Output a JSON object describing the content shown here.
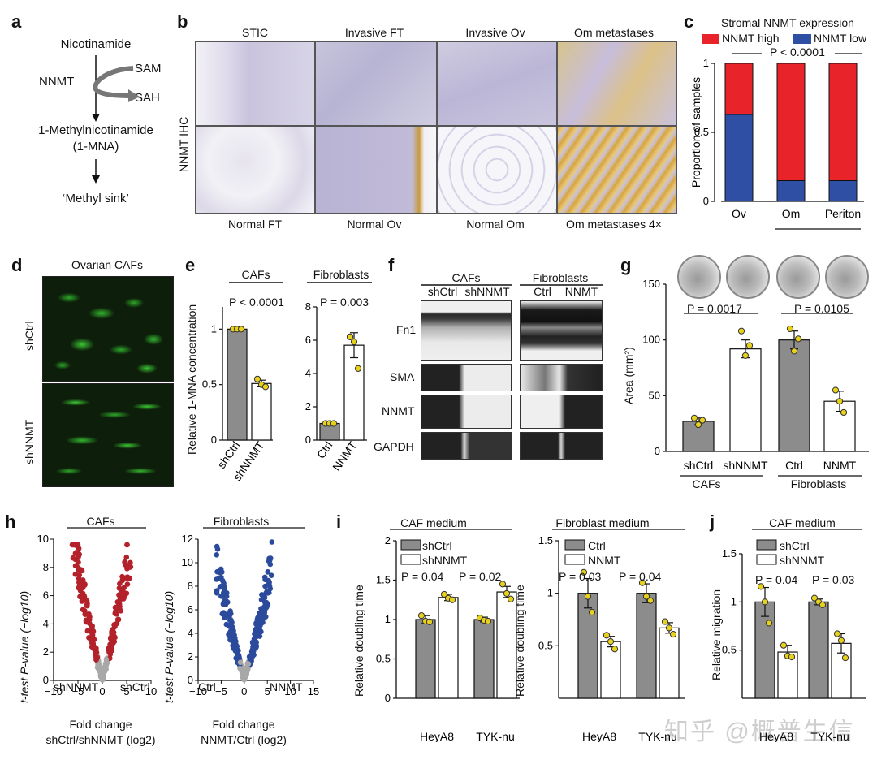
{
  "panels": {
    "a": {
      "label": "a",
      "substrate": "Nicotinamide",
      "enzyme": "NNMT",
      "cofactor_in": "SAM",
      "cofactor_out": "SAH",
      "product_line1": "1-Methylnicotinamide",
      "product_line2": "(1-MNA)",
      "sink": "‘Methyl sink’"
    },
    "b": {
      "label": "b",
      "top_titles": [
        "STIC",
        "Invasive FT",
        "Invasive Ov",
        "Om metastases"
      ],
      "bottom_titles": [
        "Normal FT",
        "Normal Ov",
        "Normal Om",
        "Om metastases 4×"
      ],
      "side_label": "NNMT IHC"
    },
    "c": {
      "label": "c",
      "title": "Stromal NNMT expression",
      "legend_high": "NNMT high",
      "legend_low": "NNMT low",
      "pvalue": "P < 0.0001",
      "ylabel": "Proportion of samples",
      "colors": {
        "high": "#e8242a",
        "low": "#2e4fa3"
      }
    },
    "d": {
      "label": "d",
      "title": "Ovarian CAFs",
      "row1": "shCtrl",
      "row2": "shNNMT"
    },
    "e": {
      "label": "e",
      "ylabel": "Relative 1-MNA concentration",
      "left_title": "CAFs",
      "right_title": "Fibroblasts",
      "left_p": "P < 0.0001",
      "right_p": "P = 0.003"
    },
    "f": {
      "label": "f",
      "group1": "CAFs",
      "group2": "Fibroblasts",
      "lanes": [
        "shCtrl",
        "shNNMT",
        "Ctrl",
        "NNMT"
      ],
      "rows": [
        "Fn1",
        "SMA",
        "NNMT",
        "GAPDH"
      ]
    },
    "g": {
      "label": "g",
      "ylabel": "Area (mm²)",
      "p1": "P = 0.0017",
      "p2": "P = 0.0105",
      "group1": "CAFs",
      "group2": "Fibroblasts"
    },
    "h": {
      "label": "h",
      "left_title": "CAFs",
      "right_title": "Fibroblasts",
      "ylabel": "t-test P-value (−log10)",
      "left_xlabel_1": "Fold change",
      "left_xlabel_2": "shCtrl/shNNMT (log2)",
      "right_xlabel_1": "Fold change",
      "right_xlabel_2": "NNMT/Ctrl (log2)",
      "left_corner_l": "shNNMT",
      "left_corner_r": "shCtrl",
      "right_corner_l": "Ctrl",
      "right_corner_r": "NNMT"
    },
    "i": {
      "label": "i",
      "left_title": "CAF medium",
      "right_title": "Fibroblast medium",
      "ylabel": "Relative doubling time",
      "left_legend": [
        "shCtrl",
        "shNNMT"
      ],
      "right_legend": [
        "Ctrl",
        "NNMT"
      ],
      "left_p": [
        "P = 0.04",
        "P = 0.02"
      ],
      "right_p": [
        "P = 0.03",
        "P = 0.04"
      ]
    },
    "j": {
      "label": "j",
      "title": "CAF medium",
      "ylabel": "Relative migration",
      "legend": [
        "shCtrl",
        "shNNMT"
      ],
      "p": [
        "P = 0.04",
        "P = 0.03"
      ]
    }
  },
  "watermark": "知乎 @概普生信",
  "chart_data": [
    {
      "id": "c",
      "type": "bar",
      "categories": [
        "Ov",
        "Om",
        "Periton"
      ],
      "series": [
        {
          "name": "NNMT low",
          "values": [
            0.63,
            0.15,
            0.15
          ]
        },
        {
          "name": "NNMT high",
          "values": [
            0.37,
            0.85,
            0.85
          ]
        }
      ],
      "ylabel": "Proportion of samples",
      "ylim": [
        0,
        1.0
      ],
      "yticks": [
        0,
        0.5,
        1.0
      ]
    },
    {
      "id": "e-left",
      "type": "bar",
      "categories": [
        "shCtrl",
        "shNNMT"
      ],
      "values": [
        1.0,
        0.51
      ],
      "errors": [
        0,
        0.03
      ],
      "points": [
        [
          1.0,
          1.0,
          1.0
        ],
        [
          0.55,
          0.5,
          0.48
        ]
      ],
      "ylim": [
        0,
        1.2
      ],
      "yticks": [
        0,
        0.5,
        1.0
      ]
    },
    {
      "id": "e-right",
      "type": "bar",
      "categories": [
        "Ctrl",
        "NNMT"
      ],
      "values": [
        1.0,
        5.7
      ],
      "errors": [
        0,
        0.75
      ],
      "points": [
        [
          1.0,
          1.0,
          1.0
        ],
        [
          6.2,
          5.9,
          4.3
        ]
      ],
      "ylim": [
        0,
        8
      ],
      "yticks": [
        0,
        2,
        4,
        6,
        8
      ]
    },
    {
      "id": "g",
      "type": "bar",
      "categories": [
        "shCtrl",
        "shNNMT",
        "Ctrl",
        "NNMT"
      ],
      "values": [
        27,
        92,
        100,
        45
      ],
      "errors": [
        3,
        8,
        8,
        9
      ],
      "points": [
        [
          30,
          24,
          28
        ],
        [
          108,
          86,
          95
        ],
        [
          110,
          90,
          101
        ],
        [
          55,
          45,
          35
        ]
      ],
      "ylim": [
        0,
        150
      ],
      "yticks": [
        0,
        50,
        100,
        150
      ]
    },
    {
      "id": "h-left",
      "type": "scatter",
      "xlim": [
        -10,
        10
      ],
      "ylim": [
        0,
        10
      ],
      "xticks": [
        -10,
        -5,
        0,
        5,
        10
      ],
      "yticks": [
        0,
        2,
        4,
        6,
        8,
        10
      ]
    },
    {
      "id": "h-right",
      "type": "scatter",
      "xlim": [
        -10,
        15
      ],
      "ylim": [
        0,
        12
      ],
      "xticks": [
        -10,
        -5,
        0,
        5,
        10,
        15
      ],
      "yticks": [
        0,
        2,
        4,
        6,
        8,
        10,
        12
      ]
    },
    {
      "id": "i-left",
      "type": "bar",
      "categories": [
        "HeyA8",
        "TYK-nu"
      ],
      "series": [
        {
          "name": "shCtrl",
          "values": [
            1.0,
            1.0
          ],
          "errors": [
            0.05,
            0.03
          ],
          "points": [
            [
              1.05,
              0.98,
              0.97
            ],
            [
              1.02,
              0.99,
              0.98
            ]
          ]
        },
        {
          "name": "shNNMT",
          "values": [
            1.28,
            1.35
          ],
          "errors": [
            0.04,
            0.07
          ],
          "points": [
            [
              1.32,
              1.27,
              1.25
            ],
            [
              1.45,
              1.33,
              1.26
            ]
          ]
        }
      ],
      "ylim": [
        0,
        2.0
      ],
      "yticks": [
        0,
        0.5,
        1.0,
        1.5,
        2.0
      ]
    },
    {
      "id": "i-right",
      "type": "bar",
      "categories": [
        "HeyA8",
        "TYK-nu"
      ],
      "series": [
        {
          "name": "Ctrl",
          "values": [
            1.0,
            1.0
          ],
          "errors": [
            0.14,
            0.09
          ],
          "points": [
            [
              1.2,
              0.97,
              0.82
            ],
            [
              1.1,
              0.97,
              0.93
            ]
          ]
        },
        {
          "name": "NNMT",
          "values": [
            0.54,
            0.67
          ],
          "errors": [
            0.05,
            0.05
          ],
          "points": [
            [
              0.6,
              0.54,
              0.47
            ],
            [
              0.73,
              0.67,
              0.61
            ]
          ]
        }
      ],
      "ylim": [
        0,
        1.5
      ],
      "yticks": [
        0.5,
        1.0,
        1.5
      ]
    },
    {
      "id": "j",
      "type": "bar",
      "categories": [
        "HeyA8",
        "TYK-nu"
      ],
      "series": [
        {
          "name": "shCtrl",
          "values": [
            1.0,
            1.0
          ],
          "errors": [
            0.15,
            0.03
          ],
          "points": [
            [
              1.16,
              1.0,
              0.78
            ],
            [
              1.04,
              1.0,
              0.97
            ]
          ]
        },
        {
          "name": "shNNMT",
          "values": [
            0.48,
            0.57
          ],
          "errors": [
            0.07,
            0.1
          ],
          "points": [
            [
              0.55,
              0.44,
              0.43
            ],
            [
              0.67,
              0.6,
              0.42
            ]
          ]
        }
      ],
      "ylim": [
        0,
        1.5
      ],
      "yticks": [
        0.5,
        1.0,
        1.5
      ]
    }
  ]
}
